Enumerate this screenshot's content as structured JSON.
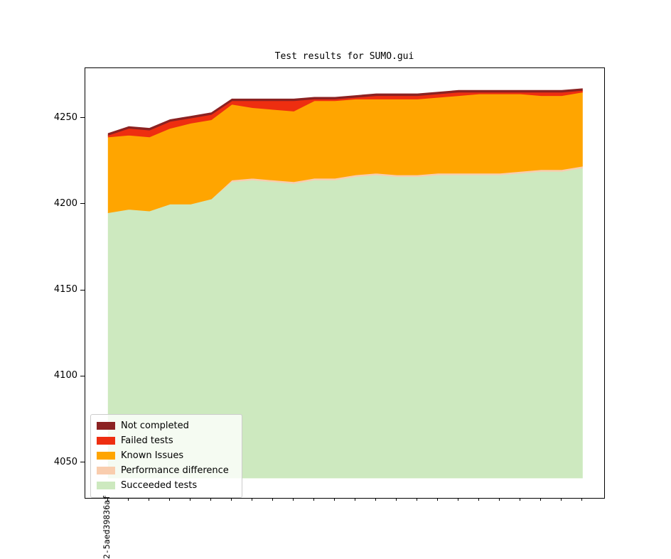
{
  "chart_data": {
    "type": "area",
    "stacked": true,
    "title": "Test results for SUMO.gui",
    "x_tick_label": "2-5aed39836af",
    "num_points": 24,
    "baseline": 4041,
    "ylim": [
      4029.4,
      4278.9
    ],
    "yticks": [
      4050,
      4100,
      4150,
      4200,
      4250
    ],
    "grid": false,
    "legend_position": "lower left",
    "series": [
      {
        "name": "Succeeded tests",
        "color": "#cde9bf",
        "absolute": true,
        "values": [
          4195,
          4197,
          4196,
          4200,
          4200,
          4203,
          4213,
          4214,
          4213,
          4212,
          4214,
          4214,
          4216,
          4217,
          4216,
          4216,
          4217,
          4217,
          4217,
          4217,
          4218,
          4219,
          4219,
          4221
        ]
      },
      {
        "name": "Performance difference",
        "color": "#f9cdae",
        "absolute": false,
        "values": [
          0,
          0,
          0,
          0,
          0,
          0,
          1,
          1,
          1,
          1,
          1,
          1,
          1,
          1,
          1,
          1,
          1,
          1,
          1,
          1,
          1,
          1,
          1,
          1
        ]
      },
      {
        "name": "Known Issues",
        "color": "#ffa500",
        "absolute": false,
        "values": [
          44,
          43,
          43,
          44,
          47,
          46,
          44,
          41,
          41,
          41,
          45,
          45,
          44,
          43,
          44,
          44,
          44,
          45,
          46,
          46,
          45,
          43,
          43,
          43
        ]
      },
      {
        "name": "Failed tests",
        "color": "#ee2e10",
        "absolute": false,
        "values": [
          1,
          4,
          4,
          4,
          3,
          3,
          2,
          4,
          5,
          6,
          1,
          1,
          1,
          2,
          2,
          2,
          2,
          2,
          1,
          1,
          1,
          2,
          2,
          1
        ]
      },
      {
        "name": "Not completed",
        "color": "#8b2222",
        "absolute": false,
        "values": [
          1,
          1,
          1,
          1,
          1,
          1,
          1,
          1,
          1,
          1,
          1,
          1,
          1,
          1,
          1,
          1,
          1,
          1,
          1,
          1,
          1,
          1,
          1,
          1
        ]
      }
    ],
    "totals": [
      4241,
      4245,
      4244,
      4249,
      4251,
      4253,
      4261,
      4261,
      4261,
      4261,
      4262,
      4262,
      4263,
      4264,
      4264,
      4264,
      4265,
      4266,
      4266,
      4266,
      4266,
      4266,
      4266,
      4267
    ],
    "legend_order": [
      "Not completed",
      "Failed tests",
      "Known Issues",
      "Performance difference",
      "Succeeded tests"
    ]
  }
}
